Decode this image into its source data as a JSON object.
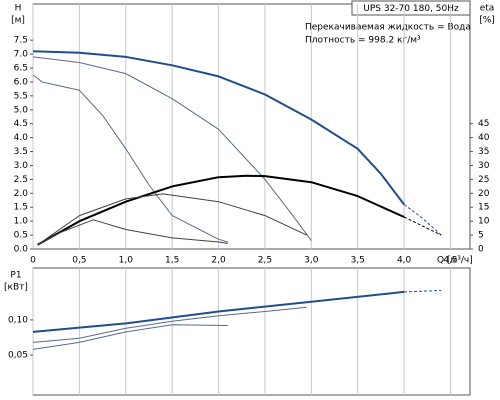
{
  "chart_data": [
    {
      "type": "line",
      "title": "UPS 32-70 180, 50Hz",
      "annotations": [
        "Перекачиваемая жидкость = Вода",
        "Плотность = 998.2 кг/м³"
      ],
      "ylabel": [
        "H",
        "[м]"
      ],
      "y2label": [
        "eta",
        "[%]"
      ],
      "xlabel": "Q [м³/ч]",
      "xlim": [
        0,
        4.71
      ],
      "ylim": [
        0,
        8.8
      ],
      "y2lim": [
        0,
        88
      ],
      "xticks": [
        0,
        {
          "value": 0.5,
          "label": "0,5"
        },
        {
          "value": 1.0,
          "label": "1,0"
        },
        {
          "value": 1.5,
          "label": "1,5"
        },
        {
          "value": 2.0,
          "label": "2,0"
        },
        {
          "value": 2.5,
          "label": "2,5"
        },
        {
          "value": 3.0,
          "label": "3,0"
        },
        {
          "value": 3.5,
          "label": "3,5"
        },
        {
          "value": 4.0,
          "label": "4,0"
        },
        {
          "value": 4.5,
          "label": "4,5"
        }
      ],
      "yticks": [
        {
          "value": 0,
          "label": "0.0"
        },
        0.5,
        {
          "value": 1,
          "label": "1.0"
        },
        1.5,
        {
          "value": 2,
          "label": "2.0"
        },
        2.5,
        {
          "value": 3,
          "label": "3.0"
        },
        3.5,
        {
          "value": 4,
          "label": "4.0"
        },
        4.5,
        {
          "value": 5,
          "label": "5.0"
        },
        5.5,
        {
          "value": 6,
          "label": "6.0"
        },
        6.5,
        {
          "value": 7,
          "label": "7.0"
        },
        7.5
      ],
      "y2ticks": [
        0,
        5,
        10,
        15,
        20,
        25,
        30,
        35,
        40,
        45
      ],
      "grid": true,
      "series": [
        {
          "color": "#1f4e8c",
          "width": 2,
          "x": [
            0,
            0.5,
            1.0,
            1.5,
            2.0,
            2.5,
            3.0,
            3.5,
            3.75,
            4.0
          ],
          "values": [
            7.1,
            7.05,
            6.9,
            6.6,
            6.2,
            5.55,
            4.65,
            3.6,
            2.7,
            1.6
          ]
        },
        {
          "color": "#1f4e8c",
          "width": 1,
          "dashed": true,
          "x": [
            4.0,
            4.2,
            4.4
          ],
          "values": [
            1.6,
            1.1,
            0.5
          ]
        },
        {
          "color": "#5a6a8a",
          "width": 1,
          "x": [
            0,
            0.5,
            1.0,
            1.5,
            2.0,
            2.5,
            2.8,
            3.0
          ],
          "values": [
            6.9,
            6.7,
            6.3,
            5.4,
            4.3,
            2.5,
            1.2,
            0.3
          ]
        },
        {
          "color": "#5a6a8a",
          "width": 1,
          "x": [
            0,
            0.1,
            0.5,
            0.75,
            1.0,
            1.25,
            1.5,
            2.0,
            2.1
          ],
          "values": [
            6.25,
            6.0,
            5.7,
            4.8,
            3.6,
            2.3,
            1.2,
            0.35,
            0.25
          ]
        },
        {
          "color": "#000000",
          "width": 2,
          "axis": "y2",
          "x": [
            0.05,
            0.5,
            1.0,
            1.5,
            2.0,
            2.3,
            2.5,
            3.0,
            3.5,
            4.0
          ],
          "values": [
            1.5,
            10,
            17,
            22.5,
            25.8,
            26.3,
            26.2,
            24,
            19,
            11.5
          ]
        },
        {
          "color": "#000000",
          "width": 1,
          "dashed": true,
          "axis": "y2",
          "x": [
            4.0,
            4.4
          ],
          "values": [
            11.5,
            5
          ]
        },
        {
          "color": "#404040",
          "width": 1,
          "axis": "y2",
          "x": [
            0.05,
            0.5,
            1.0,
            1.4,
            2.0,
            2.5,
            2.95
          ],
          "values": [
            1.5,
            12,
            18,
            19.8,
            17,
            12,
            5
          ]
        },
        {
          "color": "#404040",
          "width": 1,
          "axis": "y2",
          "x": [
            0.05,
            0.3,
            0.65,
            1.0,
            1.5,
            2.0,
            2.1
          ],
          "values": [
            1.5,
            6,
            10.5,
            7,
            4,
            2.5,
            2
          ]
        }
      ]
    },
    {
      "type": "line",
      "ylabel": [
        "P1",
        "[кВт]"
      ],
      "xlim": [
        0,
        4.71
      ],
      "ylim": [
        -0.007,
        0.174
      ],
      "xticks": [
        0,
        0.5,
        1.0,
        1.5,
        2.0,
        2.5,
        3.0,
        3.5,
        4.0,
        4.5
      ],
      "yticks": [
        {
          "value": 0.05,
          "label": "0,05"
        },
        {
          "value": 0.1,
          "label": "0,10"
        }
      ],
      "grid": true,
      "series": [
        {
          "color": "#1f4e8c",
          "width": 2,
          "x": [
            0,
            1.0,
            2.0,
            3.0,
            4.0
          ],
          "values": [
            0.083,
            0.095,
            0.112,
            0.126,
            0.14
          ]
        },
        {
          "color": "#1f4e8c",
          "width": 1,
          "dashed": true,
          "x": [
            4.0,
            4.4
          ],
          "values": [
            0.14,
            0.142
          ]
        },
        {
          "color": "#5a6a8a",
          "width": 1,
          "x": [
            0,
            0.5,
            1.0,
            1.5,
            2.0,
            2.5,
            2.95
          ],
          "values": [
            0.068,
            0.074,
            0.088,
            0.098,
            0.106,
            0.112,
            0.118
          ]
        },
        {
          "color": "#5a6a8a",
          "width": 1,
          "x": [
            0,
            0.5,
            1.0,
            1.5,
            2.1
          ],
          "values": [
            0.058,
            0.068,
            0.083,
            0.093,
            0.092
          ]
        }
      ]
    }
  ]
}
